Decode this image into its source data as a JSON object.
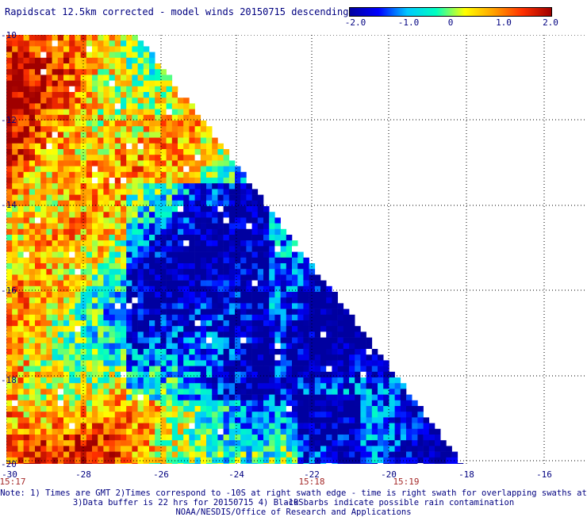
{
  "title": "Rapidscat 12.5km corrected - model winds 20150715 descending",
  "colorbar": {
    "labels": [
      "-2.0",
      "-1.0",
      "0",
      "1.0",
      "2.0"
    ],
    "colors": [
      "#0000a0",
      "#0000ff",
      "#00c8ff",
      "#00ffc0",
      "#ffff00",
      "#ffa000",
      "#ff3000",
      "#a00000"
    ]
  },
  "x_ticks": [
    "-30",
    "-28",
    "-26",
    "-24",
    "-22",
    "-20",
    "-18",
    "-16"
  ],
  "y_ticks": [
    "-10",
    "-12",
    "-14",
    "-16",
    "-18",
    "-20"
  ],
  "times": [
    "15:17",
    "15:18",
    "15:19"
  ],
  "notes": [
    "Note: 1) Times are GMT 2)Times correspond to -10S at right swath edge - time is right swath for overlapping swaths at -10S",
    "3)Data buffer is 22 hrs for 20150715 4) Black barbs indicate possible rain contamination",
    "NOAA/NESDIS/Office of Research and Applications"
  ]
}
